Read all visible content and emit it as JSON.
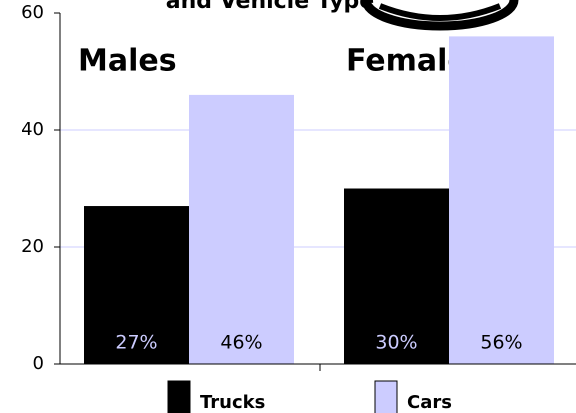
{
  "chart_data": {
    "type": "bar",
    "title": "and Vehicle Type",
    "categories": [
      "Males",
      "Females"
    ],
    "series": [
      {
        "name": "Trucks",
        "color": "#000000",
        "values": [
          27,
          30
        ],
        "value_labels": [
          "27%",
          "30%"
        ]
      },
      {
        "name": "Cars",
        "color": "#ccccff",
        "values": [
          46,
          56
        ],
        "value_labels": [
          "46%",
          "56%"
        ]
      }
    ],
    "ylim": [
      0,
      60
    ],
    "yticks": [
      0,
      20,
      40,
      60
    ],
    "grid": true,
    "legend": "bottom"
  }
}
